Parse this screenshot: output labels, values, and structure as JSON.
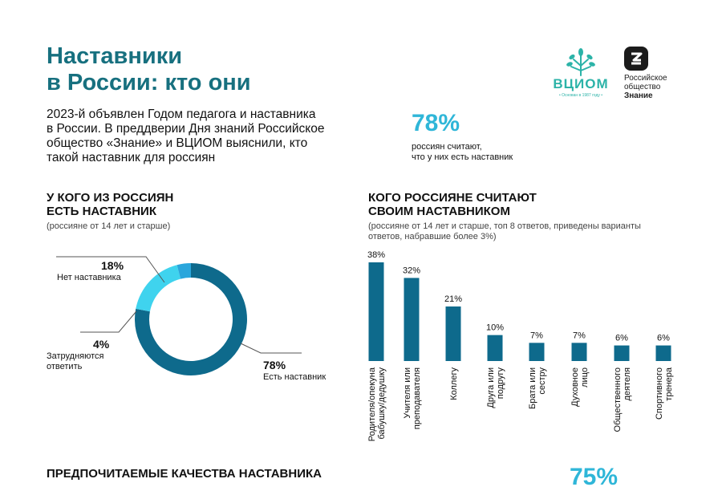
{
  "header": {
    "title_lines": [
      "Наставники",
      "в России: кто они"
    ],
    "intro_lines": [
      "2023-й объявлен Годом педагога и наставника",
      "в России. В преддверии Дня знаний Российское",
      "общество «Знание» и ВЦИОМ выяснили, кто",
      "такой наставник для россиян"
    ]
  },
  "logos": {
    "vciom": {
      "word": "ВЦИОМ",
      "tagline": "• Основан в 1987 году •"
    },
    "znanie": {
      "lines": [
        "Российское",
        "общество",
        "Знание"
      ]
    }
  },
  "highlight": {
    "value": "78%",
    "caption_lines": [
      "россиян считают,",
      "что у них есть наставник"
    ]
  },
  "colors": {
    "title": "#17707f",
    "dark_blue": "#0e6a8c",
    "light_blue": "#3fd3ee",
    "mid_blue": "#2aa6dc",
    "bar": "#0e6a8c",
    "accent_teal": "#2cb3a8",
    "big_number": "#2fb6d8"
  },
  "donut_section": {
    "heading_lines": [
      "У КОГО ИЗ РОССИЯН",
      "ЕСТЬ НАСТАВНИК"
    ],
    "note": "(россияне от 14 лет и старше)"
  },
  "bar_section": {
    "heading_lines": [
      "КОГО РОССИЯНЕ СЧИТАЮТ",
      "СВОИМ НАСТАВНИКОМ"
    ],
    "note_lines": [
      "(россияне от 14 лет и старше, топ 8 ответов, приведены варианты",
      "ответов, набравшие более 3%)"
    ]
  },
  "chart_data": [
    {
      "type": "pie",
      "labels": [
        "Есть наставник",
        "Нет наставника",
        "Затрудняются ответить"
      ],
      "values": [
        78,
        18,
        4
      ],
      "value_labels": [
        "78%",
        "18%",
        "4%"
      ]
    },
    {
      "type": "bar",
      "categories": [
        [
          "Родителя/опекуна",
          "бабушку/дедушку"
        ],
        [
          "Учителя или",
          "преподавателя"
        ],
        [
          "Коллегу"
        ],
        [
          "Друга или",
          "подругу"
        ],
        [
          "Брата или",
          "сестру"
        ],
        [
          "Духовное",
          "лицо"
        ],
        [
          "Общественного",
          "деятеля"
        ],
        [
          "Спортивного",
          "тренера"
        ]
      ],
      "values": [
        38,
        32,
        21,
        10,
        7,
        7,
        6,
        6
      ],
      "value_labels": [
        "38%",
        "32%",
        "21%",
        "10%",
        "7%",
        "7%",
        "6%",
        "6%"
      ]
    }
  ],
  "bottom": {
    "heading": "ПРЕДПОЧИТАЕМЫЕ КАЧЕСТВА НАСТАВНИКА",
    "big_value": "75%"
  }
}
